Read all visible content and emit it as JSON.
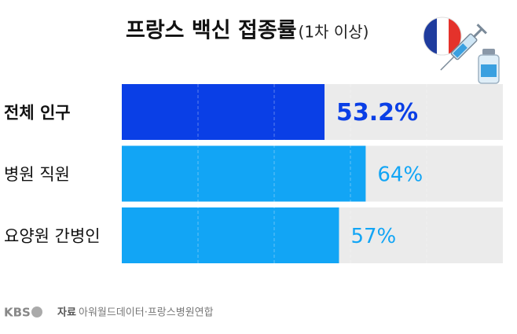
{
  "chart_data": {
    "type": "hbar",
    "title": "프랑스 백신 접종률",
    "subtitle": "(1차 이상)",
    "categories": [
      "전체 인구",
      "병원 직원",
      "요양원 간병인"
    ],
    "values": [
      53.2,
      64,
      57
    ],
    "value_labels": [
      "53.2%",
      "64%",
      "57%"
    ],
    "colors": [
      "#0a3fe6",
      "#12a5f5",
      "#12a5f5"
    ],
    "xlim": [
      0,
      100
    ],
    "xticks": [
      20,
      40,
      60,
      80
    ],
    "grid": true,
    "source_label": "자료",
    "source": "아워월드데이터·프랑스병원연합",
    "logo": "KBS"
  }
}
